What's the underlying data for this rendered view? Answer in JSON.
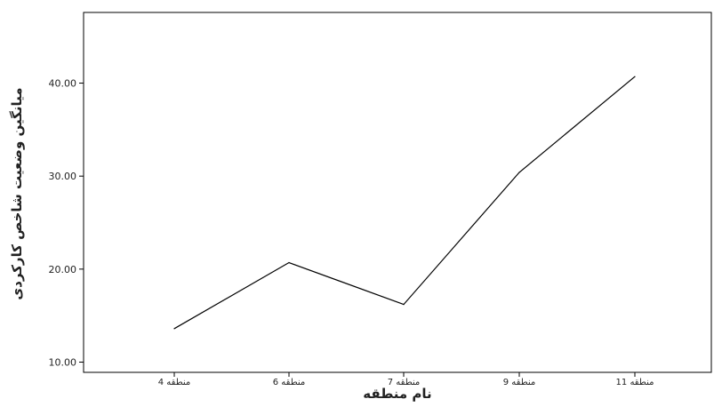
{
  "chart_data": {
    "type": "line",
    "title": "",
    "xlabel": "نام منطقه",
    "ylabel": "میانگین وضعیت شاخص کارکردی",
    "categories": [
      "منطقه 4",
      "منطقه 6",
      "منطقه 7",
      "منطقه 9",
      "منطقه 11"
    ],
    "values": [
      13.6,
      20.7,
      16.2,
      30.4,
      40.7
    ],
    "yticks": [
      "10.00",
      "20.00",
      "30.00",
      "40.00"
    ],
    "ylim": [
      8.9,
      47.6
    ],
    "grid": false,
    "legend": "none",
    "line_color": "#000000"
  }
}
